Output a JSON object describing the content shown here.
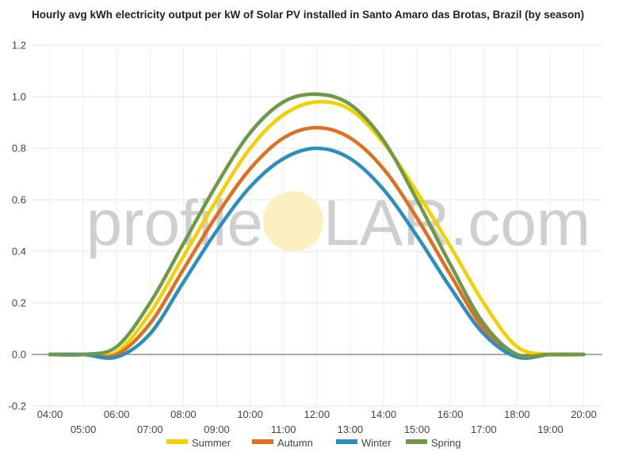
{
  "chart_data": {
    "type": "line",
    "title": "Hourly avg kWh electricity output per kW of Solar PV installed in Santo Amaro das Brotas, Brazil (by season)",
    "xlabel": "",
    "ylabel": "",
    "ylim": [
      -0.2,
      1.2
    ],
    "yticks": [
      "-0.2",
      "0.0",
      "0.2",
      "0.4",
      "0.6",
      "0.8",
      "1.0",
      "1.2"
    ],
    "x": [
      "04:00",
      "05:00",
      "06:00",
      "07:00",
      "08:00",
      "09:00",
      "10:00",
      "11:00",
      "12:00",
      "13:00",
      "14:00",
      "15:00",
      "16:00",
      "17:00",
      "18:00",
      "19:00",
      "20:00"
    ],
    "grid": true,
    "legend_position": "bottom",
    "series": [
      {
        "name": "Summer",
        "color": "#f5d000",
        "values": [
          0.0,
          0.0,
          0.01,
          0.16,
          0.38,
          0.6,
          0.8,
          0.93,
          0.98,
          0.95,
          0.82,
          0.63,
          0.42,
          0.2,
          0.03,
          0.0,
          0.0
        ]
      },
      {
        "name": "Autumn",
        "color": "#e07020",
        "values": [
          0.0,
          0.0,
          0.0,
          0.12,
          0.33,
          0.54,
          0.72,
          0.84,
          0.88,
          0.84,
          0.72,
          0.53,
          0.31,
          0.1,
          0.0,
          0.0,
          0.0
        ]
      },
      {
        "name": "Winter",
        "color": "#2a8fc0",
        "values": [
          0.0,
          0.0,
          -0.01,
          0.08,
          0.28,
          0.48,
          0.65,
          0.76,
          0.8,
          0.76,
          0.64,
          0.46,
          0.26,
          0.08,
          -0.01,
          0.0,
          0.0
        ]
      },
      {
        "name": "Spring",
        "color": "#6c9a48",
        "values": [
          0.0,
          0.0,
          0.03,
          0.2,
          0.43,
          0.66,
          0.86,
          0.98,
          1.01,
          0.97,
          0.83,
          0.6,
          0.35,
          0.12,
          0.0,
          0.0,
          0.0
        ]
      }
    ]
  },
  "watermark": {
    "left": "profile",
    "right": "LAR.com",
    "sun_color": "#fcefc0"
  }
}
